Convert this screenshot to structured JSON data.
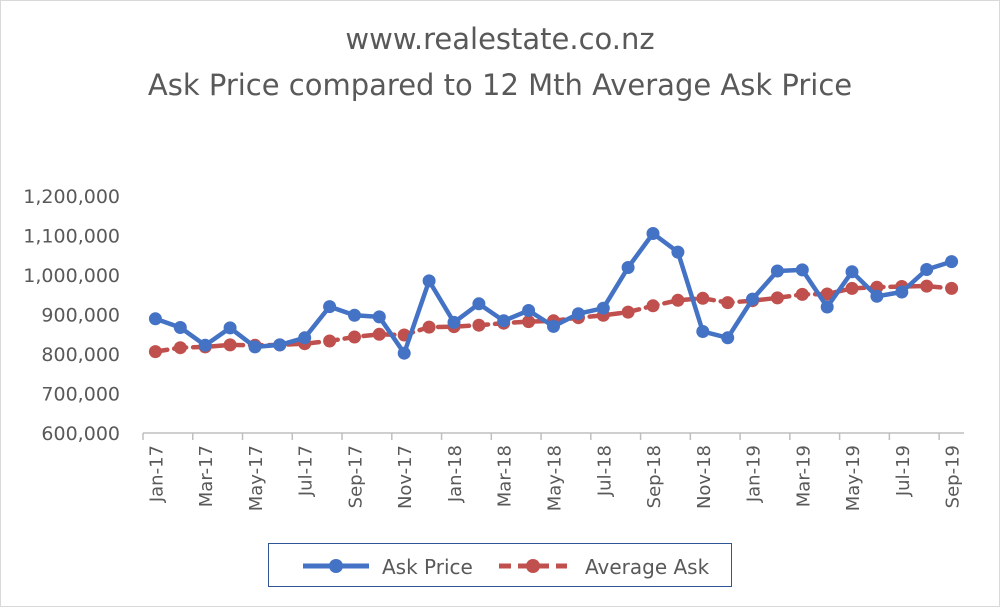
{
  "title": "www.realestate.co.nz",
  "subtitle": "Ask Price compared to 12 Mth Average Ask Price",
  "colors": {
    "ask_price": "#4472c4",
    "average_ask": "#c0504d",
    "axis": "#bfbfbf",
    "text": "#595959"
  },
  "chart_data": {
    "type": "line",
    "title": "www.realestate.co.nz",
    "subtitle": "Ask Price compared to 12 Mth Average Ask Price",
    "xlabel": "",
    "ylabel": "",
    "ylim": [
      600000,
      1200000
    ],
    "yticks": [
      600000,
      700000,
      800000,
      900000,
      1000000,
      1100000,
      1200000
    ],
    "ytick_labels": [
      "600,000",
      "700,000",
      "800,000",
      "900,000",
      "1,000,000",
      "1,100,000",
      "1,200,000"
    ],
    "grid": false,
    "legend": "bottom",
    "categories": [
      "Jan-17",
      "Feb-17",
      "Mar-17",
      "Apr-17",
      "May-17",
      "Jun-17",
      "Jul-17",
      "Aug-17",
      "Sep-17",
      "Oct-17",
      "Nov-17",
      "Dec-17",
      "Jan-18",
      "Feb-18",
      "Mar-18",
      "Apr-18",
      "May-18",
      "Jun-18",
      "Jul-18",
      "Aug-18",
      "Sep-18",
      "Oct-18",
      "Nov-18",
      "Dec-18",
      "Jan-19",
      "Feb-19",
      "Mar-19",
      "Apr-19",
      "May-19",
      "Jun-19",
      "Jul-19",
      "Aug-19",
      "Sep-19"
    ],
    "tick_labels": [
      "Jan-17",
      "Mar-17",
      "May-17",
      "Jul-17",
      "Sep-17",
      "Nov-17",
      "Jan-18",
      "Mar-18",
      "May-18",
      "Jul-18",
      "Sep-18",
      "Nov-18",
      "Jan-19",
      "Mar-19",
      "May-19",
      "Jul-19",
      "Sep-19"
    ],
    "series": [
      {
        "name": "Ask Price",
        "values": [
          889000,
          867000,
          822000,
          866000,
          818000,
          823000,
          841000,
          920000,
          898000,
          894000,
          802000,
          985000,
          880000,
          927000,
          884000,
          910000,
          870000,
          902000,
          916000,
          1019000,
          1105000,
          1058000,
          857000,
          841000,
          939000,
          1010000,
          1013000,
          919000,
          1008000,
          946000,
          957000,
          1014000,
          1034000
        ]
      },
      {
        "name": "Average Ask",
        "values": [
          806000,
          816000,
          818000,
          823000,
          822000,
          823000,
          826000,
          833000,
          843000,
          850000,
          848000,
          868000,
          869000,
          873000,
          878000,
          882000,
          884000,
          892000,
          898000,
          906000,
          922000,
          936000,
          941000,
          930000,
          935000,
          942000,
          951000,
          952000,
          966000,
          969000,
          971000,
          972000,
          966000
        ]
      }
    ]
  }
}
